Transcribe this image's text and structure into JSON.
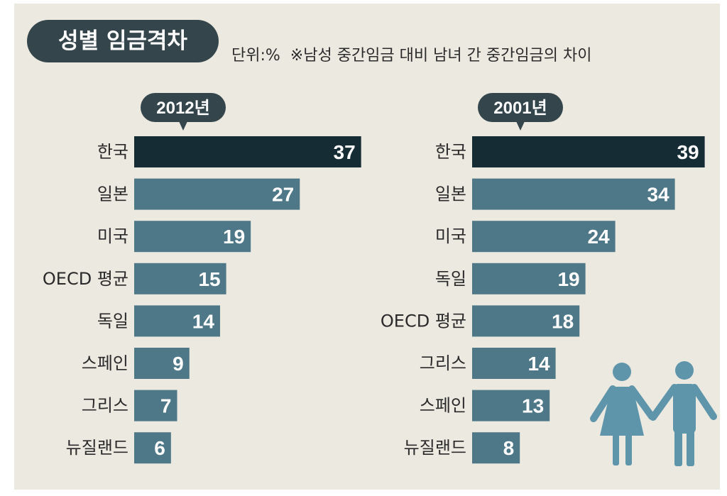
{
  "title": "성별 임금격차",
  "unit": "단위:%",
  "note": "※남성 중간임금 대비 남녀 간 중간임금의 차이",
  "colors": {
    "highlight": "#162c35",
    "bar": "#4e7887",
    "text": "#2a2a2a",
    "pill": "#34454b",
    "figure": "#5e95ab"
  },
  "chart_data": [
    {
      "type": "bar",
      "title": "2012년",
      "orientation": "horizontal",
      "categories": [
        "한국",
        "일본",
        "미국",
        "OECD 평균",
        "독일",
        "스페인",
        "그리스",
        "뉴질랜드"
      ],
      "values": [
        37,
        27,
        19,
        15,
        14,
        9,
        7,
        6
      ],
      "highlight_index": 0
    },
    {
      "type": "bar",
      "title": "2001년",
      "orientation": "horizontal",
      "categories": [
        "한국",
        "일본",
        "미국",
        "독일",
        "OECD 평균",
        "그리스",
        "스페인",
        "뉴질랜드"
      ],
      "values": [
        39,
        34,
        24,
        19,
        18,
        14,
        13,
        8
      ],
      "highlight_index": 0
    }
  ],
  "decoration": {
    "icon": "couple-holding-hands-icon"
  }
}
